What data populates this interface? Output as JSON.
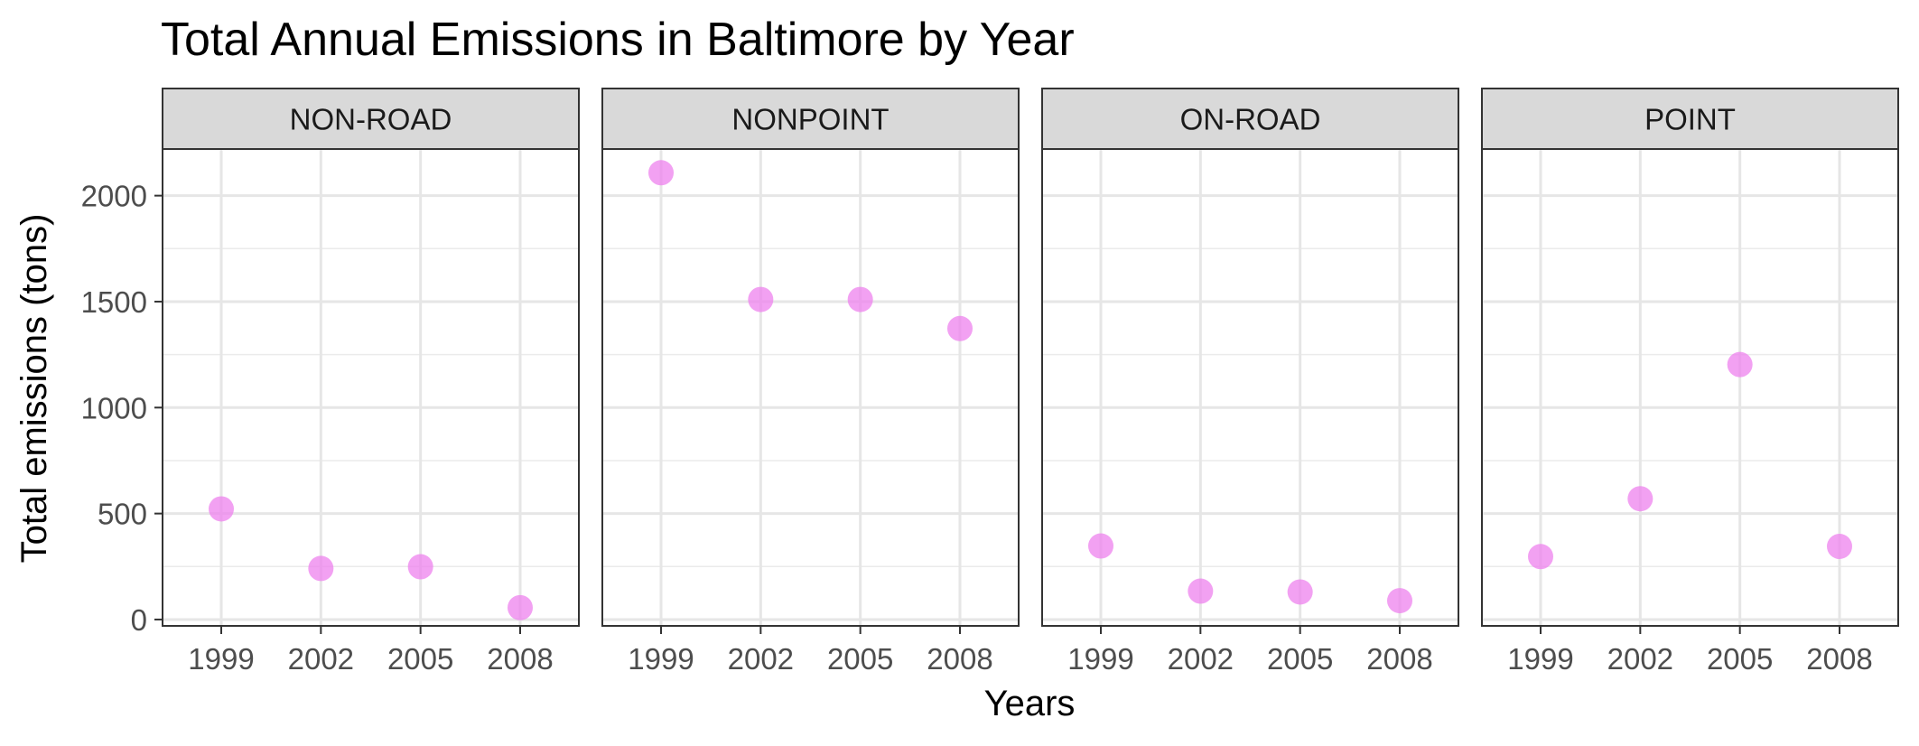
{
  "chart_data": {
    "type": "scatter",
    "title": "Total Annual Emissions in Baltimore by Year",
    "xlabel": "Years",
    "ylabel": "Total emissions (tons)",
    "x_ticks": [
      "1999",
      "2002",
      "2005",
      "2008"
    ],
    "y_ticks": [
      "0",
      "500",
      "1000",
      "1500",
      "2000"
    ],
    "ylim": [
      -30,
      2220
    ],
    "grid": true,
    "facets": [
      {
        "label": "NON-ROAD",
        "x": [
          1999,
          2002,
          2005,
          2008
        ],
        "y": [
          522,
          241,
          249,
          56
        ]
      },
      {
        "label": "NONPOINT",
        "x": [
          1999,
          2002,
          2005,
          2008
        ],
        "y": [
          2108,
          1510,
          1510,
          1373
        ]
      },
      {
        "label": "ON-ROAD",
        "x": [
          1999,
          2002,
          2005,
          2008
        ],
        "y": [
          347,
          134,
          130,
          89
        ]
      },
      {
        "label": "POINT",
        "x": [
          1999,
          2002,
          2005,
          2008
        ],
        "y": [
          297,
          570,
          1203,
          345
        ]
      }
    ],
    "point_color": "#ee82ee"
  }
}
